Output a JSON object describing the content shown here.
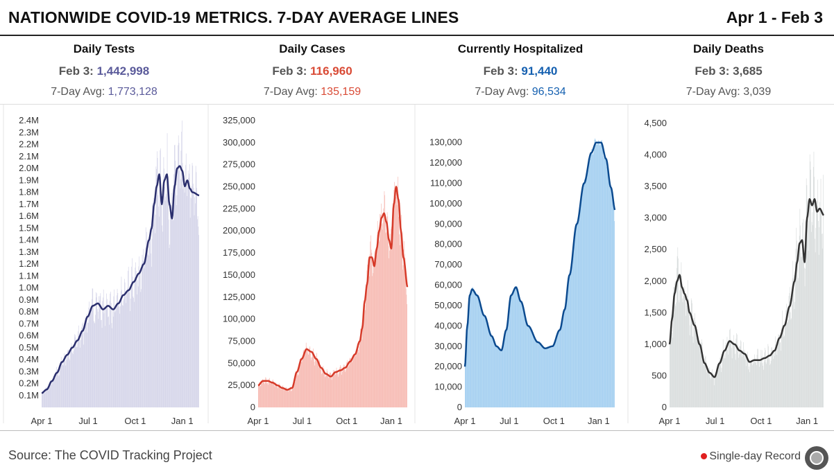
{
  "header": {
    "title": "NATIONWIDE COVID-19 METRICS. 7-DAY AVERAGE LINES",
    "date_range": "Apr 1 - Feb 3"
  },
  "footer": {
    "source": "Source: The COVID Tracking Project",
    "legend_label": "Single-day Record"
  },
  "chart_data": [
    {
      "type": "bar",
      "title": "Daily Tests",
      "latest_label": "Feb 3:",
      "latest_value": "1,442,998",
      "avg_label": "7-Day Avg:",
      "avg_value": "1,773,128",
      "bar_color": "#d3d3e8",
      "line_color": "#2b2f6e",
      "value_color": "#5a5a9a",
      "ylim": [
        0,
        2400000
      ],
      "y_ticks": [
        100000,
        200000,
        300000,
        400000,
        500000,
        600000,
        700000,
        800000,
        900000,
        1000000,
        1100000,
        1200000,
        1300000,
        1400000,
        1500000,
        1600000,
        1700000,
        1800000,
        1900000,
        2000000,
        2100000,
        2200000,
        2300000,
        2400000
      ],
      "y_tick_labels": [
        "0.1M",
        "0.2M",
        "0.3M",
        "0.4M",
        "0.5M",
        "0.6M",
        "0.7M",
        "0.8M",
        "0.9M",
        "1.0M",
        "1.1M",
        "1.2M",
        "1.3M",
        "1.4M",
        "1.5M",
        "1.6M",
        "1.7M",
        "1.8M",
        "1.9M",
        "2.0M",
        "2.1M",
        "2.2M",
        "2.3M",
        "2.4M"
      ],
      "x_ticks": [
        "Apr 1",
        "Jul 1",
        "Oct 1",
        "Jan 1"
      ],
      "x_tick_days": [
        0,
        91,
        183,
        275
      ],
      "num_days": 309,
      "avg_series": [
        [
          0,
          120000
        ],
        [
          10,
          150000
        ],
        [
          20,
          220000
        ],
        [
          30,
          290000
        ],
        [
          40,
          380000
        ],
        [
          50,
          440000
        ],
        [
          60,
          500000
        ],
        [
          70,
          560000
        ],
        [
          80,
          640000
        ],
        [
          90,
          760000
        ],
        [
          100,
          850000
        ],
        [
          110,
          870000
        ],
        [
          120,
          820000
        ],
        [
          130,
          850000
        ],
        [
          140,
          820000
        ],
        [
          150,
          870000
        ],
        [
          160,
          940000
        ],
        [
          170,
          980000
        ],
        [
          180,
          1050000
        ],
        [
          190,
          1120000
        ],
        [
          200,
          1200000
        ],
        [
          210,
          1400000
        ],
        [
          215,
          1500000
        ],
        [
          220,
          1700000
        ],
        [
          225,
          1850000
        ],
        [
          230,
          1950000
        ],
        [
          235,
          1700000
        ],
        [
          240,
          1900000
        ],
        [
          245,
          1950000
        ],
        [
          250,
          1700000
        ],
        [
          255,
          1580000
        ],
        [
          260,
          1850000
        ],
        [
          265,
          2000000
        ],
        [
          270,
          2020000
        ],
        [
          275,
          1980000
        ],
        [
          280,
          1850000
        ],
        [
          285,
          1900000
        ],
        [
          290,
          1830000
        ],
        [
          295,
          1800000
        ],
        [
          309,
          1773128
        ]
      ],
      "bar_jitter": 0.2,
      "final_bar": 1442998
    },
    {
      "type": "bar",
      "title": "Daily Cases",
      "latest_label": "Feb 3:",
      "latest_value": "116,960",
      "avg_label": "7-Day Avg:",
      "avg_value": "135,159",
      "bar_color": "#f6b5ad",
      "line_color": "#d63a29",
      "value_color": "#d94a35",
      "ylim": [
        0,
        325000
      ],
      "y_ticks": [
        0,
        25000,
        50000,
        75000,
        100000,
        125000,
        150000,
        175000,
        200000,
        225000,
        250000,
        275000,
        300000,
        325000
      ],
      "y_tick_labels": [
        "0",
        "25,000",
        "50,000",
        "75,000",
        "100,000",
        "125,000",
        "150,000",
        "175,000",
        "200,000",
        "225,000",
        "250,000",
        "275,000",
        "300,000",
        "325,000"
      ],
      "x_ticks": [
        "Apr 1",
        "Jul 1",
        "Oct 1",
        "Jan 1"
      ],
      "x_tick_days": [
        0,
        91,
        183,
        275
      ],
      "num_days": 309,
      "avg_series": [
        [
          0,
          25000
        ],
        [
          10,
          30000
        ],
        [
          20,
          30000
        ],
        [
          30,
          28000
        ],
        [
          40,
          25000
        ],
        [
          50,
          22000
        ],
        [
          60,
          20000
        ],
        [
          70,
          22000
        ],
        [
          80,
          40000
        ],
        [
          90,
          55000
        ],
        [
          100,
          66000
        ],
        [
          110,
          63000
        ],
        [
          120,
          55000
        ],
        [
          130,
          45000
        ],
        [
          140,
          38000
        ],
        [
          150,
          35000
        ],
        [
          160,
          40000
        ],
        [
          170,
          42000
        ],
        [
          180,
          45000
        ],
        [
          190,
          52000
        ],
        [
          200,
          60000
        ],
        [
          210,
          75000
        ],
        [
          215,
          90000
        ],
        [
          220,
          120000
        ],
        [
          225,
          140000
        ],
        [
          230,
          170000
        ],
        [
          235,
          170000
        ],
        [
          240,
          160000
        ],
        [
          245,
          180000
        ],
        [
          250,
          200000
        ],
        [
          255,
          215000
        ],
        [
          260,
          220000
        ],
        [
          265,
          210000
        ],
        [
          270,
          190000
        ],
        [
          275,
          180000
        ],
        [
          280,
          230000
        ],
        [
          285,
          250000
        ],
        [
          290,
          235000
        ],
        [
          295,
          200000
        ],
        [
          300,
          170000
        ],
        [
          309,
          135159
        ]
      ],
      "bar_jitter": 0.15,
      "final_bar": 116960
    },
    {
      "type": "area",
      "title": "Currently Hospitalized",
      "latest_label": "Feb 3:",
      "latest_value": "91,440",
      "avg_label": "7-Day Avg:",
      "avg_value": "96,534",
      "bar_color": "#9ccbef",
      "line_color": "#0b4a8f",
      "value_color": "#1560b0",
      "ylim": [
        0,
        135000
      ],
      "y_ticks": [
        0,
        10000,
        20000,
        30000,
        40000,
        50000,
        60000,
        70000,
        80000,
        90000,
        100000,
        110000,
        120000,
        130000
      ],
      "y_tick_labels": [
        "0",
        "10,000",
        "20,000",
        "30,000",
        "40,000",
        "50,000",
        "60,000",
        "70,000",
        "80,000",
        "90,000",
        "100,000",
        "110,000",
        "120,000",
        "130,000"
      ],
      "x_ticks": [
        "Apr 1",
        "Jul 1",
        "Oct 1",
        "Jan 1"
      ],
      "x_tick_days": [
        0,
        91,
        183,
        275
      ],
      "num_days": 309,
      "avg_series": [
        [
          0,
          20000
        ],
        [
          5,
          40000
        ],
        [
          10,
          55000
        ],
        [
          15,
          58000
        ],
        [
          25,
          55000
        ],
        [
          40,
          45000
        ],
        [
          55,
          35000
        ],
        [
          65,
          30000
        ],
        [
          75,
          28000
        ],
        [
          85,
          38000
        ],
        [
          95,
          55000
        ],
        [
          105,
          59000
        ],
        [
          115,
          52000
        ],
        [
          130,
          40000
        ],
        [
          150,
          32000
        ],
        [
          165,
          29000
        ],
        [
          180,
          30000
        ],
        [
          195,
          38000
        ],
        [
          205,
          48000
        ],
        [
          215,
          65000
        ],
        [
          230,
          90000
        ],
        [
          245,
          110000
        ],
        [
          260,
          125000
        ],
        [
          270,
          130000
        ],
        [
          280,
          130000
        ],
        [
          290,
          122000
        ],
        [
          300,
          108000
        ],
        [
          309,
          96534
        ]
      ],
      "bar_jitter": 0.02,
      "final_bar": 91440
    },
    {
      "type": "bar",
      "title": "Daily Deaths",
      "latest_label": "Feb 3:",
      "latest_value": "3,685",
      "avg_label": "7-Day Avg:",
      "avg_value": "3,039",
      "bar_color": "#d7dbdb",
      "line_color": "#333333",
      "value_color": "#555555",
      "ylim": [
        0,
        4500
      ],
      "y_ticks": [
        0,
        500,
        1000,
        1500,
        2000,
        2500,
        3000,
        3500,
        4000,
        4500
      ],
      "y_tick_labels": [
        "0",
        "500",
        "1,000",
        "1,500",
        "2,000",
        "2,500",
        "3,000",
        "3,500",
        "4,000",
        "4,500"
      ],
      "x_ticks": [
        "Apr 1",
        "Jul 1",
        "Oct 1",
        "Jan 1"
      ],
      "x_tick_days": [
        0,
        91,
        183,
        275
      ],
      "num_days": 309,
      "avg_series": [
        [
          0,
          1000
        ],
        [
          5,
          1400
        ],
        [
          10,
          1800
        ],
        [
          15,
          2000
        ],
        [
          20,
          2100
        ],
        [
          25,
          1900
        ],
        [
          30,
          1800
        ],
        [
          35,
          1700
        ],
        [
          40,
          1500
        ],
        [
          50,
          1300
        ],
        [
          60,
          1000
        ],
        [
          70,
          700
        ],
        [
          80,
          550
        ],
        [
          90,
          480
        ],
        [
          100,
          700
        ],
        [
          110,
          900
        ],
        [
          120,
          1050
        ],
        [
          130,
          1000
        ],
        [
          140,
          900
        ],
        [
          150,
          850
        ],
        [
          160,
          720
        ],
        [
          170,
          750
        ],
        [
          180,
          750
        ],
        [
          190,
          780
        ],
        [
          200,
          820
        ],
        [
          210,
          900
        ],
        [
          220,
          1100
        ],
        [
          230,
          1300
        ],
        [
          240,
          1600
        ],
        [
          250,
          2000
        ],
        [
          255,
          2300
        ],
        [
          260,
          2600
        ],
        [
          265,
          2650
        ],
        [
          270,
          2300
        ],
        [
          275,
          3000
        ],
        [
          280,
          3300
        ],
        [
          285,
          3200
        ],
        [
          290,
          3300
        ],
        [
          295,
          3100
        ],
        [
          300,
          3150
        ],
        [
          309,
          3039
        ]
      ],
      "bar_jitter": 0.25,
      "final_bar": 3685
    }
  ]
}
